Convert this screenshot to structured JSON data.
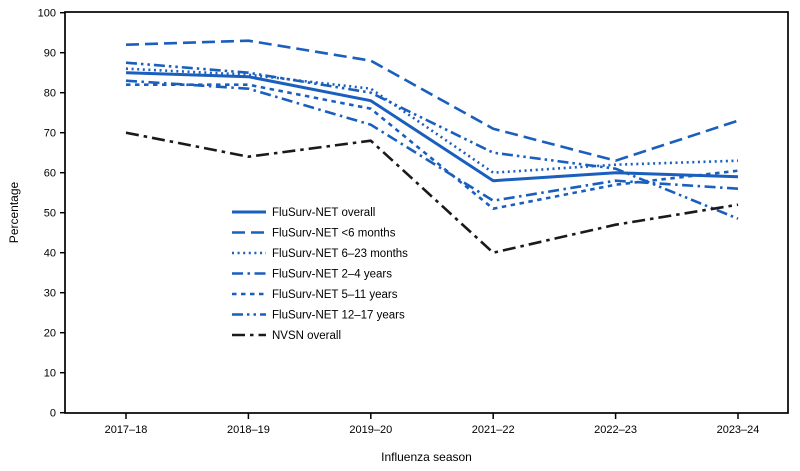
{
  "figure": {
    "ylabel": "Percentage",
    "xlabel": "Influenza season"
  },
  "chart_data": {
    "type": "line",
    "title": "",
    "xlabel": "Influenza season",
    "ylabel": "Percentage",
    "categories": [
      "2017–18",
      "2018–19",
      "2019–20",
      "2021–22",
      "2022–23",
      "2023–24"
    ],
    "ylim": [
      0,
      100
    ],
    "y_ticks": [
      0,
      10,
      20,
      30,
      40,
      50,
      60,
      70,
      80,
      90,
      100
    ],
    "grid": false,
    "legend_position": "inside-left-middle",
    "axis_color": "#000000",
    "series": [
      {
        "name": "FluSurv-NET overall",
        "style": "solid",
        "color": "#1a5fbe",
        "values": [
          85,
          84,
          78,
          58,
          60,
          59
        ]
      },
      {
        "name": "FluSurv-NET <6 months",
        "style": "long-dash",
        "color": "#1a5fbe",
        "values": [
          92,
          93,
          88,
          71,
          63,
          73
        ]
      },
      {
        "name": "FluSurv-NET 6–23 months",
        "style": "dotted",
        "color": "#1a5fbe",
        "values": [
          86,
          84.5,
          81,
          60,
          62,
          63
        ]
      },
      {
        "name": "FluSurv-NET 2–4 years",
        "style": "dash-dot",
        "color": "#1a5fbe",
        "values": [
          83,
          81,
          72,
          53,
          58,
          56
        ]
      },
      {
        "name": "FluSurv-NET 5–11 years",
        "style": "short-dash",
        "color": "#1a5fbe",
        "values": [
          82,
          82,
          76,
          51,
          57,
          60.5
        ]
      },
      {
        "name": "FluSurv-NET 12–17 years",
        "style": "dash-dot-dot",
        "color": "#1a5fbe",
        "values": [
          87.5,
          85,
          80,
          65,
          61,
          48.5
        ]
      },
      {
        "name": "NVSN overall",
        "style": "black-dash-dot",
        "color": "#1a1a1a",
        "values": [
          70,
          64,
          68,
          40,
          47,
          52
        ]
      }
    ]
  }
}
